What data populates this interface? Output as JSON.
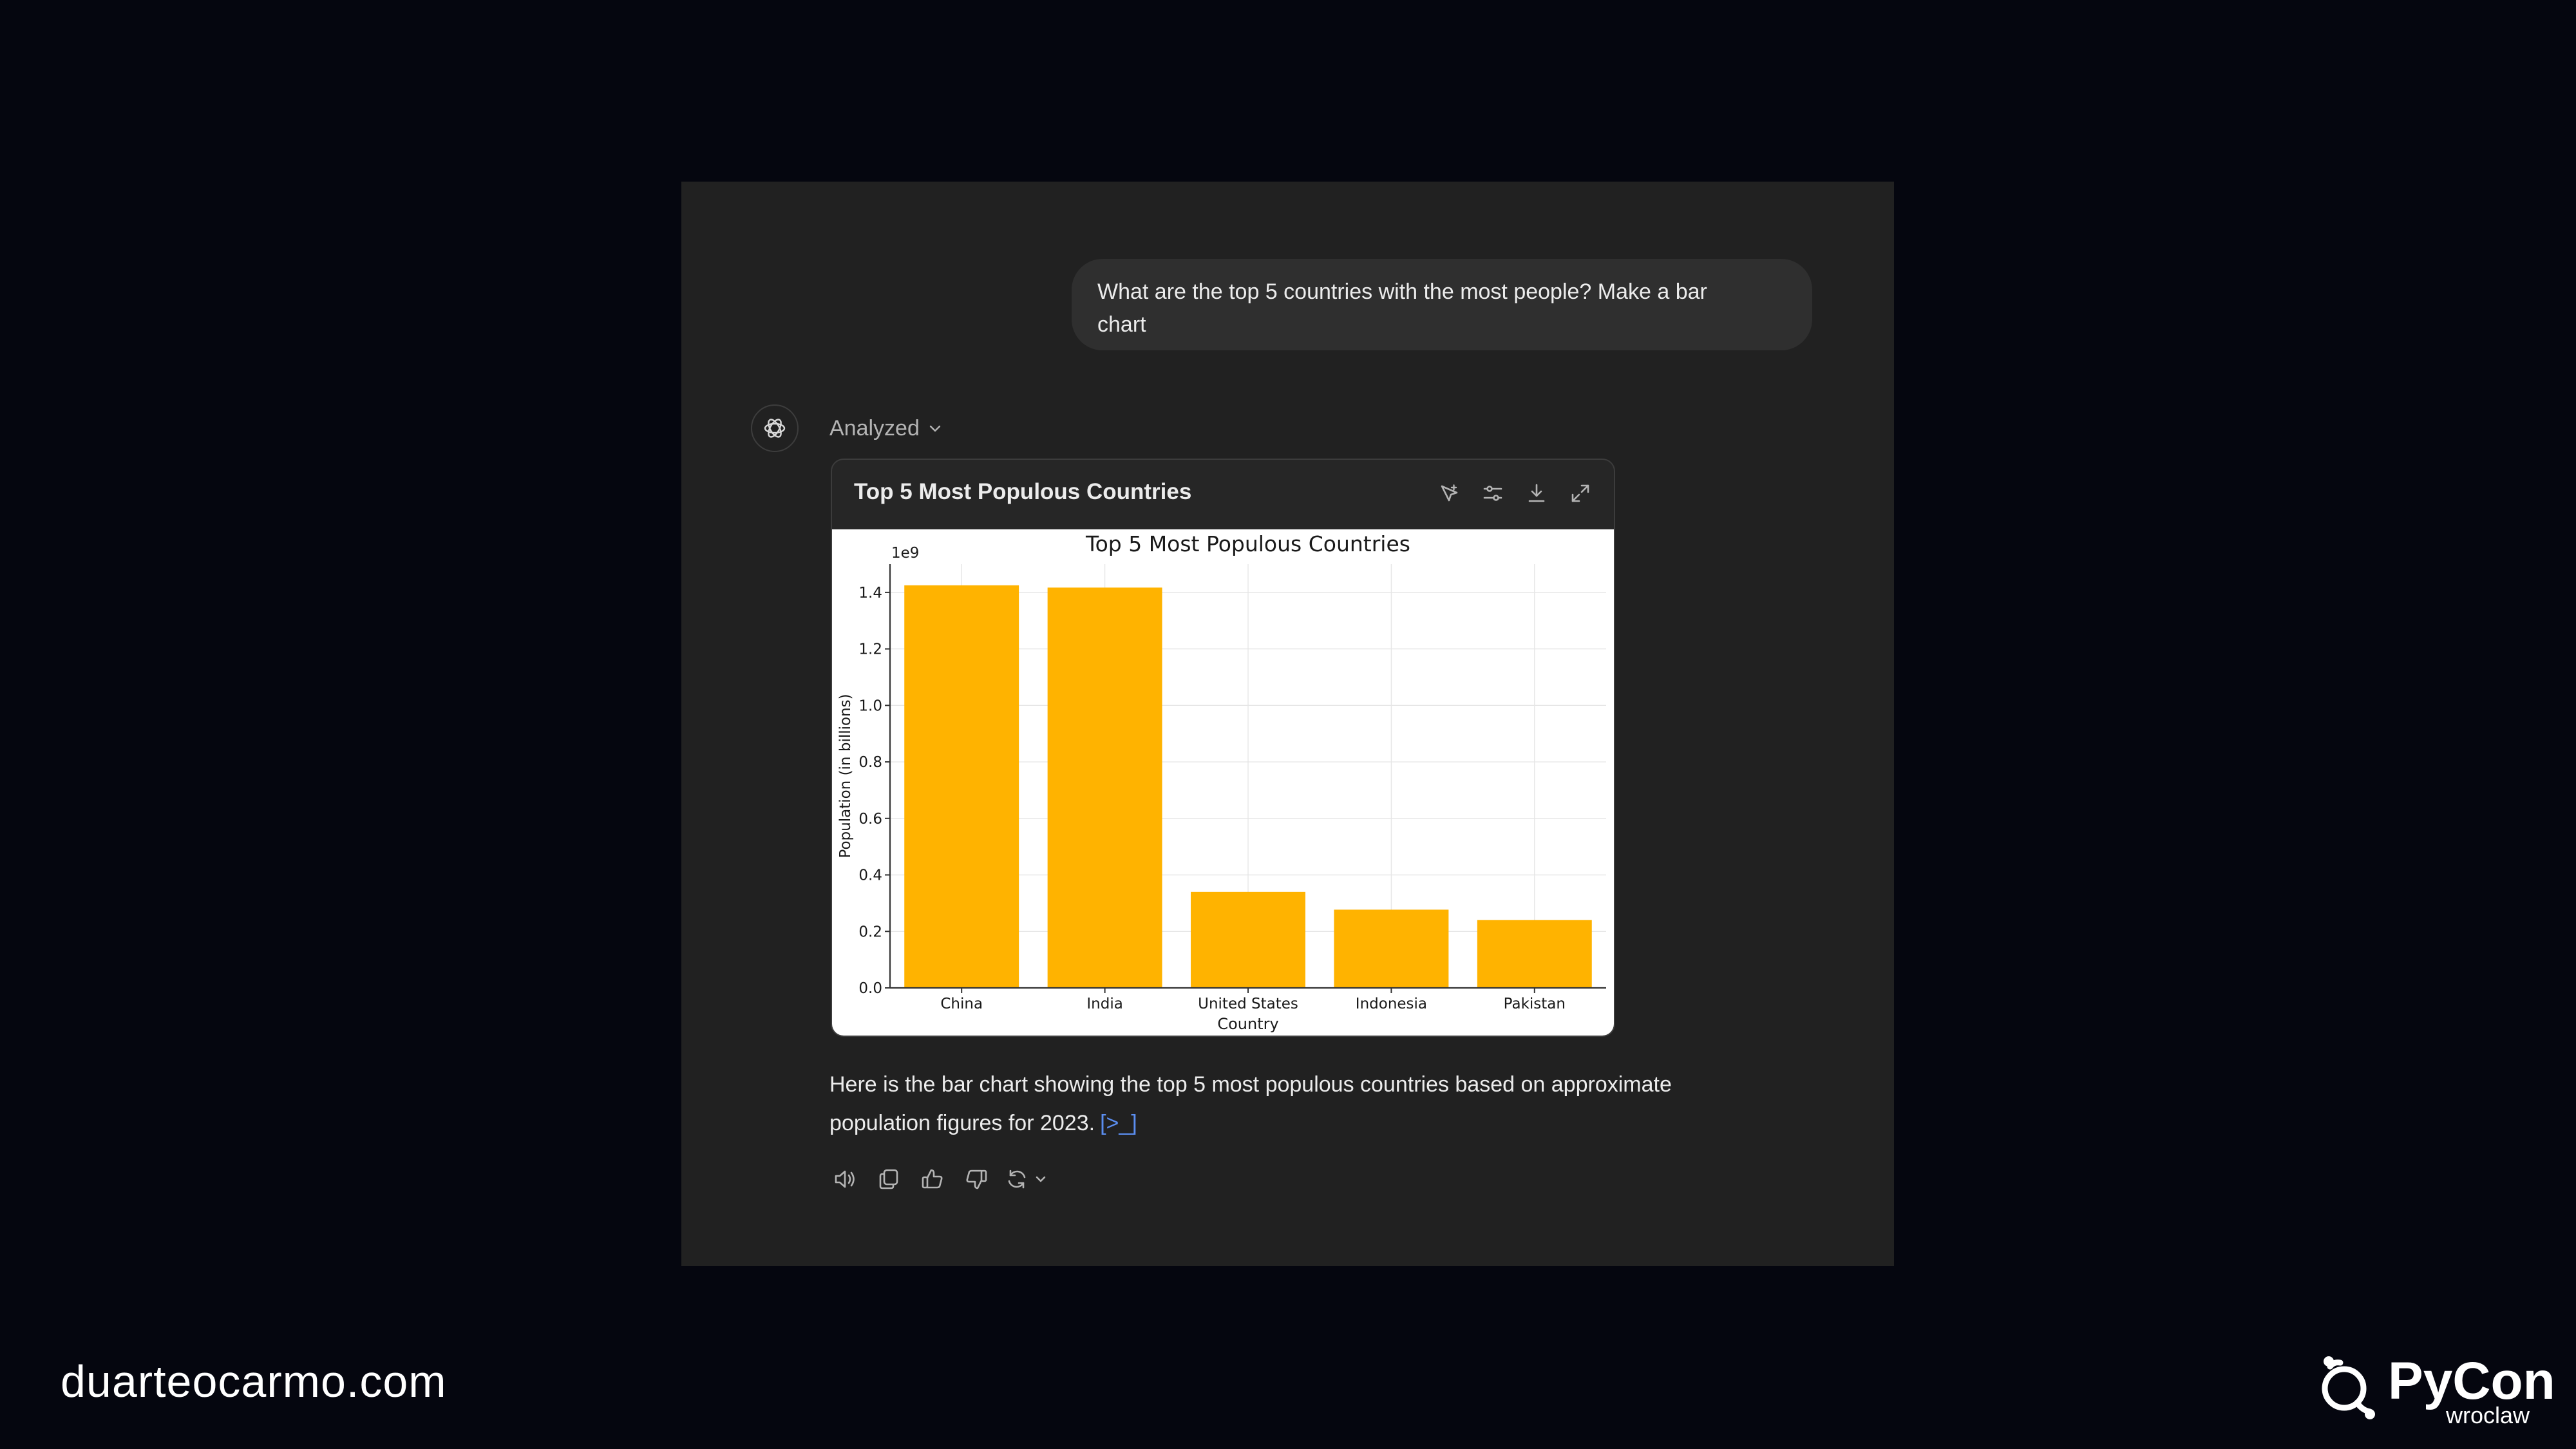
{
  "user_message": {
    "line1": "What are the top 5 countries with the most people?  Make a bar",
    "line2": "chart"
  },
  "assistant": {
    "status_label": "Analyzed",
    "chart_card_title": "Top 5 Most Populous Countries",
    "header_icons": [
      "chart-type-icon",
      "settings-sliders-icon",
      "download-icon",
      "expand-icon"
    ],
    "answer_line1": "Here is the bar chart showing the top 5 most populous countries based on approximate",
    "answer_line2": "population figures for 2023.",
    "citation": "[>_]",
    "action_icons": [
      "read-aloud-icon",
      "copy-icon",
      "thumbs-up-icon",
      "thumbs-down-icon",
      "regenerate-icon",
      "chevron-down-icon"
    ]
  },
  "chart_data": {
    "type": "bar",
    "title": "Top 5 Most Populous Countries",
    "xlabel": "Country",
    "ylabel": "Population (in billions)",
    "offset_label": "1e9",
    "categories": [
      "China",
      "India",
      "United States",
      "Indonesia",
      "Pakistan"
    ],
    "values": [
      1.425,
      1.417,
      0.34,
      0.277,
      0.24
    ],
    "ylim": [
      0,
      1.5
    ],
    "yticks": [
      "0.0",
      "0.2",
      "0.4",
      "0.6",
      "0.8",
      "1.0",
      "1.2",
      "1.4"
    ],
    "grid": true,
    "bar_color": "#ffb300"
  },
  "footer": {
    "website": "duarteocarmo.com",
    "brand": "PyCon",
    "brand_sub": "wroclaw"
  },
  "colors": {
    "page_background": "#05060f",
    "panel_background": "#212121",
    "accent_link": "#5b8ef0"
  }
}
